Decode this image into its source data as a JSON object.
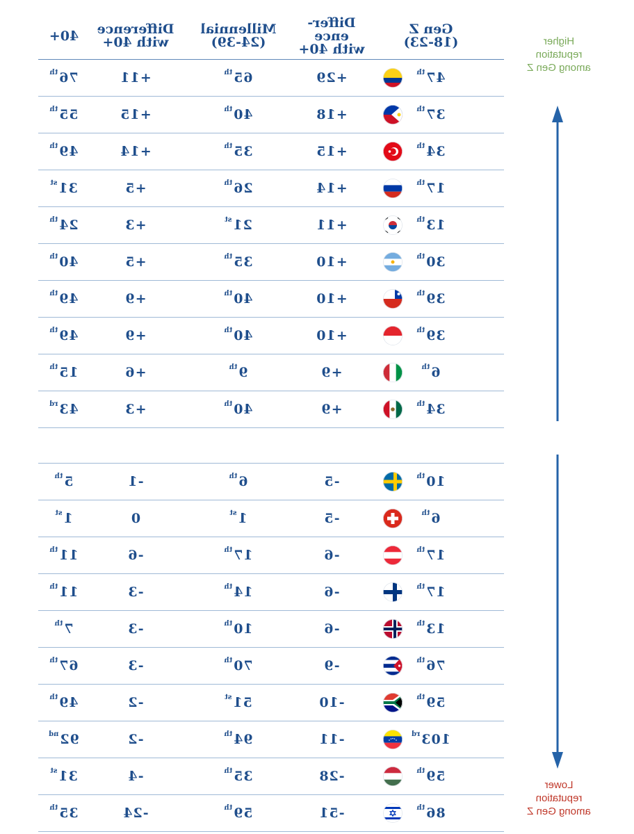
{
  "headers": {
    "gen_z": [
      "Gen Z",
      "(18-23)"
    ],
    "diff_genz": [
      "Differ-",
      "ence",
      "with 40+"
    ],
    "millennial": [
      "Millennial",
      "(24-39)"
    ],
    "diff_mill": [
      "Difference",
      "with 40+"
    ],
    "forty_plus": [
      "40+"
    ]
  },
  "annotations": {
    "higher": [
      "Higher",
      "reputation",
      "among Gen Z"
    ],
    "lower": [
      "Lower",
      "reputation",
      "among Gen Z"
    ]
  },
  "colors": {
    "text": "#1f4e8c",
    "rule": "#9fb9d6",
    "arrow": "#2563a8",
    "higher": "#7aaa5a",
    "lower": "#c0392b"
  },
  "chart_data": {
    "type": "table",
    "columns": [
      "Gen Z (18-23)",
      "Difference with 40+",
      "Millennial (24-39)",
      "Difference with 40+",
      "40+"
    ],
    "groups": [
      {
        "label": "Higher reputation among Gen Z",
        "rows": [
          {
            "flag": "colombia",
            "gen_z": {
              "n": "47",
              "s": "th"
            },
            "diff_genz": "+29",
            "millennial": {
              "n": "65",
              "s": "th"
            },
            "diff_mill": "+11",
            "forty": {
              "n": "76",
              "s": "th"
            }
          },
          {
            "flag": "philippines",
            "gen_z": {
              "n": "37",
              "s": "th"
            },
            "diff_genz": "+18",
            "millennial": {
              "n": "40",
              "s": "th"
            },
            "diff_mill": "+15",
            "forty": {
              "n": "55",
              "s": "th"
            }
          },
          {
            "flag": "turkey",
            "gen_z": {
              "n": "34",
              "s": "th"
            },
            "diff_genz": "+15",
            "millennial": {
              "n": "35",
              "s": "th"
            },
            "diff_mill": "+14",
            "forty": {
              "n": "49",
              "s": "th"
            }
          },
          {
            "flag": "russia",
            "gen_z": {
              "n": "17",
              "s": "th"
            },
            "diff_genz": "+14",
            "millennial": {
              "n": "26",
              "s": "th"
            },
            "diff_mill": "+5",
            "forty": {
              "n": "31",
              "s": "st"
            }
          },
          {
            "flag": "south-korea",
            "gen_z": {
              "n": "13",
              "s": "th"
            },
            "diff_genz": "+11",
            "millennial": {
              "n": "21",
              "s": "st"
            },
            "diff_mill": "+3",
            "forty": {
              "n": "24",
              "s": "th"
            }
          },
          {
            "flag": "argentina",
            "gen_z": {
              "n": "30",
              "s": "th"
            },
            "diff_genz": "+10",
            "millennial": {
              "n": "35",
              "s": "th"
            },
            "diff_mill": "+5",
            "forty": {
              "n": "40",
              "s": "th"
            }
          },
          {
            "flag": "chile",
            "gen_z": {
              "n": "39",
              "s": "th"
            },
            "diff_genz": "+10",
            "millennial": {
              "n": "40",
              "s": "th"
            },
            "diff_mill": "+9",
            "forty": {
              "n": "49",
              "s": "th"
            }
          },
          {
            "flag": "indonesia",
            "gen_z": {
              "n": "39",
              "s": "th"
            },
            "diff_genz": "+10",
            "millennial": {
              "n": "40",
              "s": "th"
            },
            "diff_mill": "+9",
            "forty": {
              "n": "49",
              "s": "th"
            }
          },
          {
            "flag": "italy",
            "gen_z": {
              "n": "6",
              "s": "th"
            },
            "diff_genz": "+9",
            "millennial": {
              "n": "9",
              "s": "th"
            },
            "diff_mill": "+6",
            "forty": {
              "n": "15",
              "s": "th"
            }
          },
          {
            "flag": "mexico",
            "gen_z": {
              "n": "34",
              "s": "th"
            },
            "diff_genz": "+9",
            "millennial": {
              "n": "40",
              "s": "th"
            },
            "diff_mill": "+3",
            "forty": {
              "n": "43",
              "s": "rd"
            }
          }
        ]
      },
      {
        "label": "Lower reputation among Gen Z",
        "rows": [
          {
            "flag": "sweden",
            "gen_z": {
              "n": "10",
              "s": "th"
            },
            "diff_genz": "-5",
            "millennial": {
              "n": "6",
              "s": "th"
            },
            "diff_mill": "-1",
            "forty": {
              "n": "5",
              "s": "th"
            }
          },
          {
            "flag": "switzerland",
            "gen_z": {
              "n": "6",
              "s": "th"
            },
            "diff_genz": "-5",
            "millennial": {
              "n": "1",
              "s": "st"
            },
            "diff_mill": "0",
            "forty": {
              "n": "1",
              "s": "st"
            }
          },
          {
            "flag": "austria",
            "gen_z": {
              "n": "17",
              "s": "th"
            },
            "diff_genz": "-6",
            "millennial": {
              "n": "17",
              "s": "th"
            },
            "diff_mill": "-6",
            "forty": {
              "n": "11",
              "s": "th"
            }
          },
          {
            "flag": "finland",
            "gen_z": {
              "n": "17",
              "s": "th"
            },
            "diff_genz": "-6",
            "millennial": {
              "n": "14",
              "s": "th"
            },
            "diff_mill": "-3",
            "forty": {
              "n": "11",
              "s": "th"
            }
          },
          {
            "flag": "norway",
            "gen_z": {
              "n": "13",
              "s": "th"
            },
            "diff_genz": "-6",
            "millennial": {
              "n": "10",
              "s": "th"
            },
            "diff_mill": "-3",
            "forty": {
              "n": "7",
              "s": "th"
            }
          },
          {
            "flag": "cuba",
            "gen_z": {
              "n": "76",
              "s": "th"
            },
            "diff_genz": "-9",
            "millennial": {
              "n": "70",
              "s": "th"
            },
            "diff_mill": "-3",
            "forty": {
              "n": "67",
              "s": "th"
            }
          },
          {
            "flag": "south-africa",
            "gen_z": {
              "n": "59",
              "s": "th"
            },
            "diff_genz": "-10",
            "millennial": {
              "n": "51",
              "s": "st"
            },
            "diff_mill": "-2",
            "forty": {
              "n": "49",
              "s": "th"
            }
          },
          {
            "flag": "venezuela",
            "gen_z": {
              "n": "103",
              "s": "rd"
            },
            "diff_genz": "-11",
            "millennial": {
              "n": "94",
              "s": "th"
            },
            "diff_mill": "-2",
            "forty": {
              "n": "92",
              "s": "nd"
            }
          },
          {
            "flag": "hungary",
            "gen_z": {
              "n": "59",
              "s": "th"
            },
            "diff_genz": "-28",
            "millennial": {
              "n": "35",
              "s": "th"
            },
            "diff_mill": "-4",
            "forty": {
              "n": "31",
              "s": "st"
            }
          },
          {
            "flag": "israel",
            "gen_z": {
              "n": "86",
              "s": "th"
            },
            "diff_genz": "-51",
            "millennial": {
              "n": "59",
              "s": "th"
            },
            "diff_mill": "-24",
            "forty": {
              "n": "35",
              "s": "th"
            }
          }
        ]
      }
    ]
  }
}
